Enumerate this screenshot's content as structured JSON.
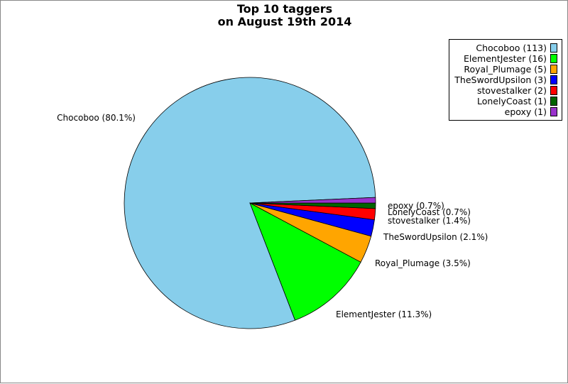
{
  "chart_data": {
    "type": "pie",
    "title_lines": [
      "Top 10 taggers",
      "on August 19th 2014"
    ],
    "slices": [
      {
        "name": "Chocoboo",
        "count": 113,
        "percent": 80.1,
        "legend": "Chocoboo (113)",
        "label": "Chocoboo (80.1%)",
        "color": "#87CEEB"
      },
      {
        "name": "ElementJester",
        "count": 16,
        "percent": 11.3,
        "legend": "ElementJester (16)",
        "label": "ElementJester (11.3%)",
        "color": "#00FF00"
      },
      {
        "name": "Royal_Plumage",
        "count": 5,
        "percent": 3.5,
        "legend": "Royal_Plumage (5)",
        "label": "Royal_Plumage (3.5%)",
        "color": "#FFA500"
      },
      {
        "name": "TheSwordUpsilon",
        "count": 3,
        "percent": 2.1,
        "legend": "TheSwordUpsilon (3)",
        "label": "TheSwordUpsilon (2.1%)",
        "color": "#0000FF"
      },
      {
        "name": "stovestalker",
        "count": 2,
        "percent": 1.4,
        "legend": "stovestalker (2)",
        "label": "stovestalker (1.4%)",
        "color": "#FF0000"
      },
      {
        "name": "LonelyCoast",
        "count": 1,
        "percent": 0.7,
        "legend": "LonelyCoast (1)",
        "label": "LonelyCoast (0.7%)",
        "color": "#006400"
      },
      {
        "name": "epoxy",
        "count": 1,
        "percent": 0.7,
        "legend": "epoxy (1)",
        "label": "epoxy (0.7%)",
        "color": "#9932CC"
      }
    ],
    "legend_position": "top-right",
    "start_angle": "3 o'clock",
    "direction": "clockwise"
  }
}
